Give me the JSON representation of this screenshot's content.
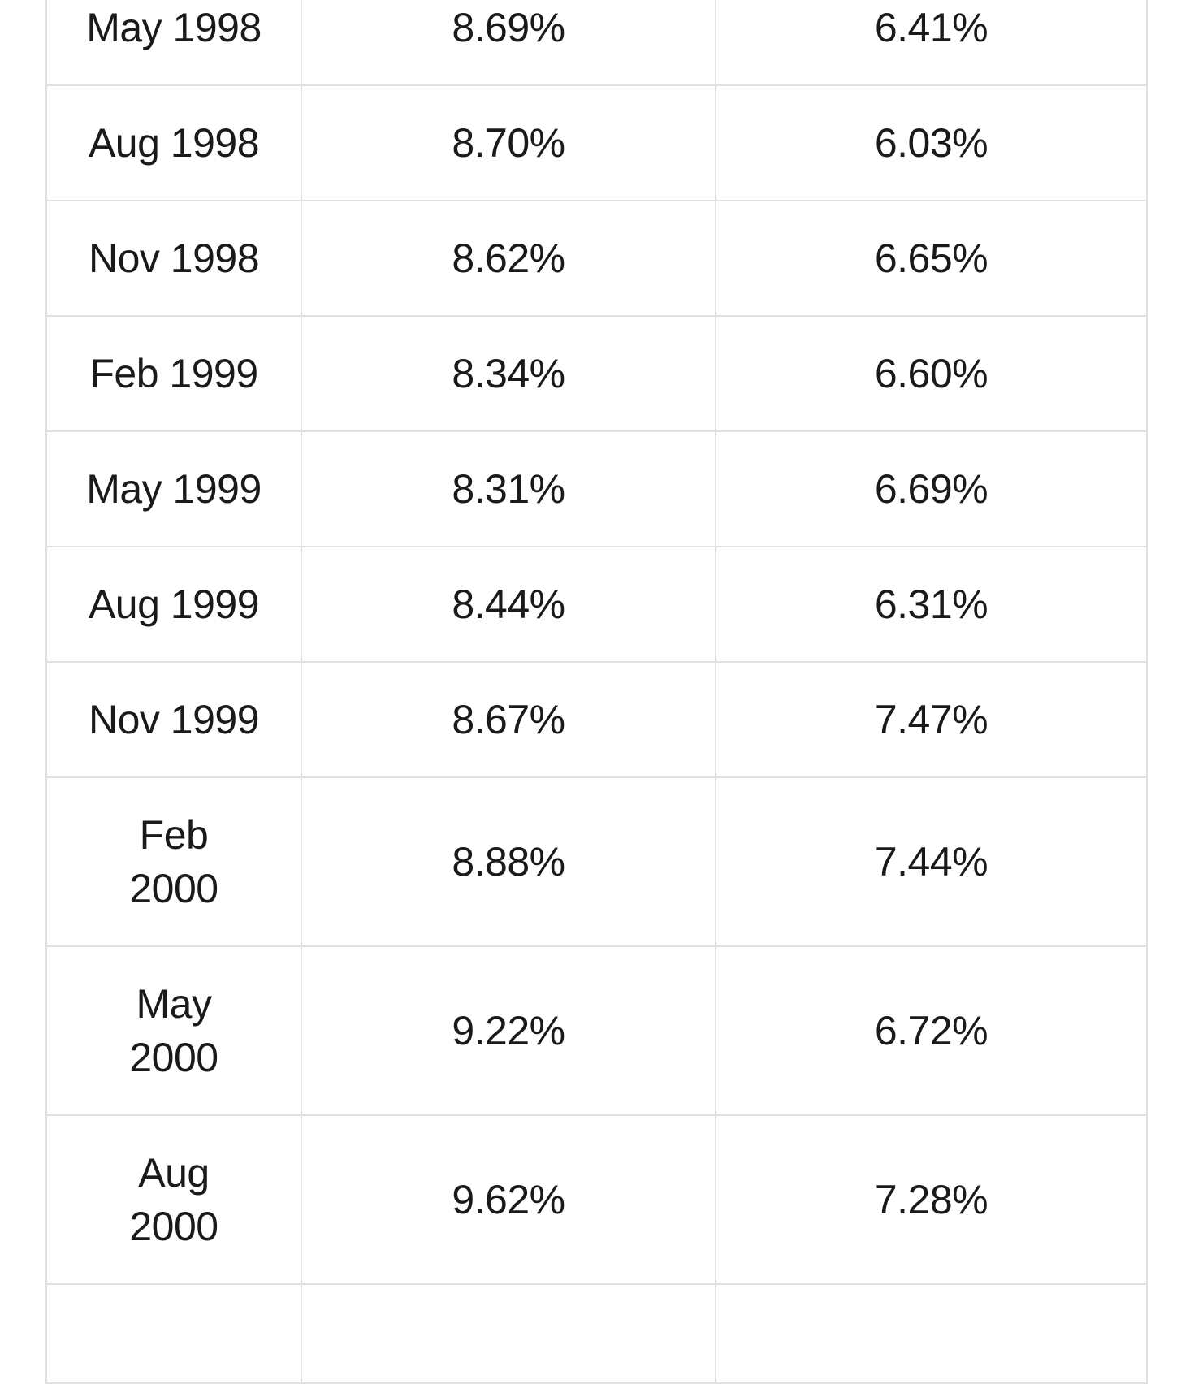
{
  "table": {
    "rows": [
      {
        "date": [
          "May 1998"
        ],
        "col2": "8.69%",
        "col3": "6.41%"
      },
      {
        "date": [
          "Aug 1998"
        ],
        "col2": "8.70%",
        "col3": "6.03%"
      },
      {
        "date": [
          "Nov 1998"
        ],
        "col2": "8.62%",
        "col3": "6.65%"
      },
      {
        "date": [
          "Feb 1999"
        ],
        "col2": "8.34%",
        "col3": "6.60%"
      },
      {
        "date": [
          "May 1999"
        ],
        "col2": "8.31%",
        "col3": "6.69%"
      },
      {
        "date": [
          "Aug 1999"
        ],
        "col2": "8.44%",
        "col3": "6.31%"
      },
      {
        "date": [
          "Nov 1999"
        ],
        "col2": "8.67%",
        "col3": "7.47%"
      },
      {
        "date": [
          "Feb",
          "2000"
        ],
        "col2": "8.88%",
        "col3": "7.44%"
      },
      {
        "date": [
          "May",
          "2000"
        ],
        "col2": "9.22%",
        "col3": "6.72%"
      },
      {
        "date": [
          "Aug",
          "2000"
        ],
        "col2": "9.62%",
        "col3": "7.28%"
      }
    ]
  }
}
